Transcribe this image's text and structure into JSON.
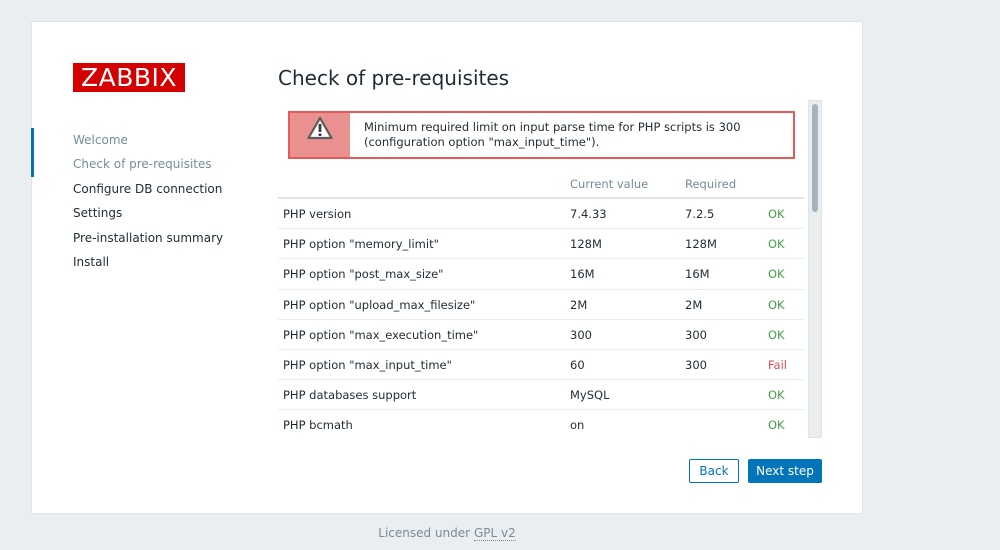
{
  "logo": {
    "text": "ZABBIX"
  },
  "nav": {
    "items": [
      {
        "label": "Welcome",
        "state": "done"
      },
      {
        "label": "Check of pre-requisites",
        "state": "active"
      },
      {
        "label": "Configure DB connection",
        "state": "pending"
      },
      {
        "label": "Settings",
        "state": "pending"
      },
      {
        "label": "Pre-installation summary",
        "state": "pending"
      },
      {
        "label": "Install",
        "state": "pending"
      }
    ]
  },
  "page": {
    "title": "Check of pre-requisites"
  },
  "alert": {
    "icon": "warning-icon",
    "line1": "Minimum required limit on input parse time for PHP scripts is 300",
    "line2": "(configuration option \"max_input_time\")."
  },
  "table": {
    "headers": {
      "name": "",
      "current": "Current value",
      "required": "Required",
      "result": ""
    },
    "rows": [
      {
        "name": "PHP version",
        "current": "7.4.33",
        "required": "7.2.5",
        "result": "OK"
      },
      {
        "name": "PHP option \"memory_limit\"",
        "current": "128M",
        "required": "128M",
        "result": "OK"
      },
      {
        "name": "PHP option \"post_max_size\"",
        "current": "16M",
        "required": "16M",
        "result": "OK"
      },
      {
        "name": "PHP option \"upload_max_filesize\"",
        "current": "2M",
        "required": "2M",
        "result": "OK"
      },
      {
        "name": "PHP option \"max_execution_time\"",
        "current": "300",
        "required": "300",
        "result": "OK"
      },
      {
        "name": "PHP option \"max_input_time\"",
        "current": "60",
        "required": "300",
        "result": "Fail"
      },
      {
        "name": "PHP databases support",
        "current": "MySQL",
        "required": "",
        "result": "OK"
      },
      {
        "name": "PHP bcmath",
        "current": "on",
        "required": "",
        "result": "OK"
      }
    ]
  },
  "buttons": {
    "back": "Back",
    "next": "Next step"
  },
  "footer": {
    "prefix": "Licensed under",
    "link": "GPL v2"
  },
  "colors": {
    "brand": "#d40000",
    "accent": "#0275b8",
    "ok": "#429e47",
    "fail": "#d64e4e",
    "alert_bg": "#e8918f"
  }
}
